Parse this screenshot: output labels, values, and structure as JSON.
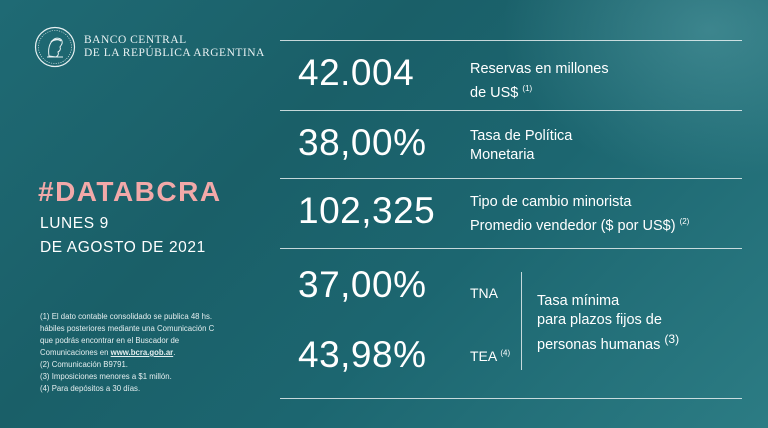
{
  "header": {
    "line1": "BANCO CENTRAL",
    "line2": "DE LA REPÚBLICA ARGENTINA",
    "logo_icon": "bcra-seal-icon"
  },
  "hashtag": "#DATABCRA",
  "date": {
    "line1": "LUNES 9",
    "line2": "DE AGOSTO DE 2021"
  },
  "notes": {
    "n1_a": "(1) El dato contable consolidado se publica 48 hs.",
    "n1_b": "hábiles posteriores mediante una Comunicación C",
    "n1_c": "que podrás encontrar en el Buscador de",
    "n1_d_pre": "Comunicaciones en ",
    "n1_d_link": "www.bcra.gob.ar",
    "n1_d_post": ".",
    "n2": "(2) Comunicación B9791.",
    "n3": "(3) Imposiciones menores a $1 millón.",
    "n4": "(4) Para depósitos a 30 días."
  },
  "indicators": {
    "reservas": {
      "value": "42.004",
      "label1": "Reservas en millones",
      "label2": "de US$",
      "note": "(1)"
    },
    "tasa_politica": {
      "value": "38,00%",
      "label1": "Tasa de Política",
      "label2": "Monetaria"
    },
    "tipo_cambio": {
      "value": "102,325",
      "label1": "Tipo de cambio minorista",
      "label2": "Promedio vendedor  ($ por US$)",
      "note": "(2)"
    },
    "plazo_fijo": {
      "tna_value": "37,00%",
      "tna_label": "TNA",
      "tea_value": "43,98%",
      "tea_label": "TEA",
      "tea_note": "(4)",
      "label1": "Tasa mínima",
      "label2": "para plazos fijos de",
      "label3": "personas humanas",
      "note": "(3)"
    }
  },
  "colors": {
    "background": "#1c636c",
    "accent_hashtag": "#f2a9a9",
    "text": "#ffffff"
  }
}
